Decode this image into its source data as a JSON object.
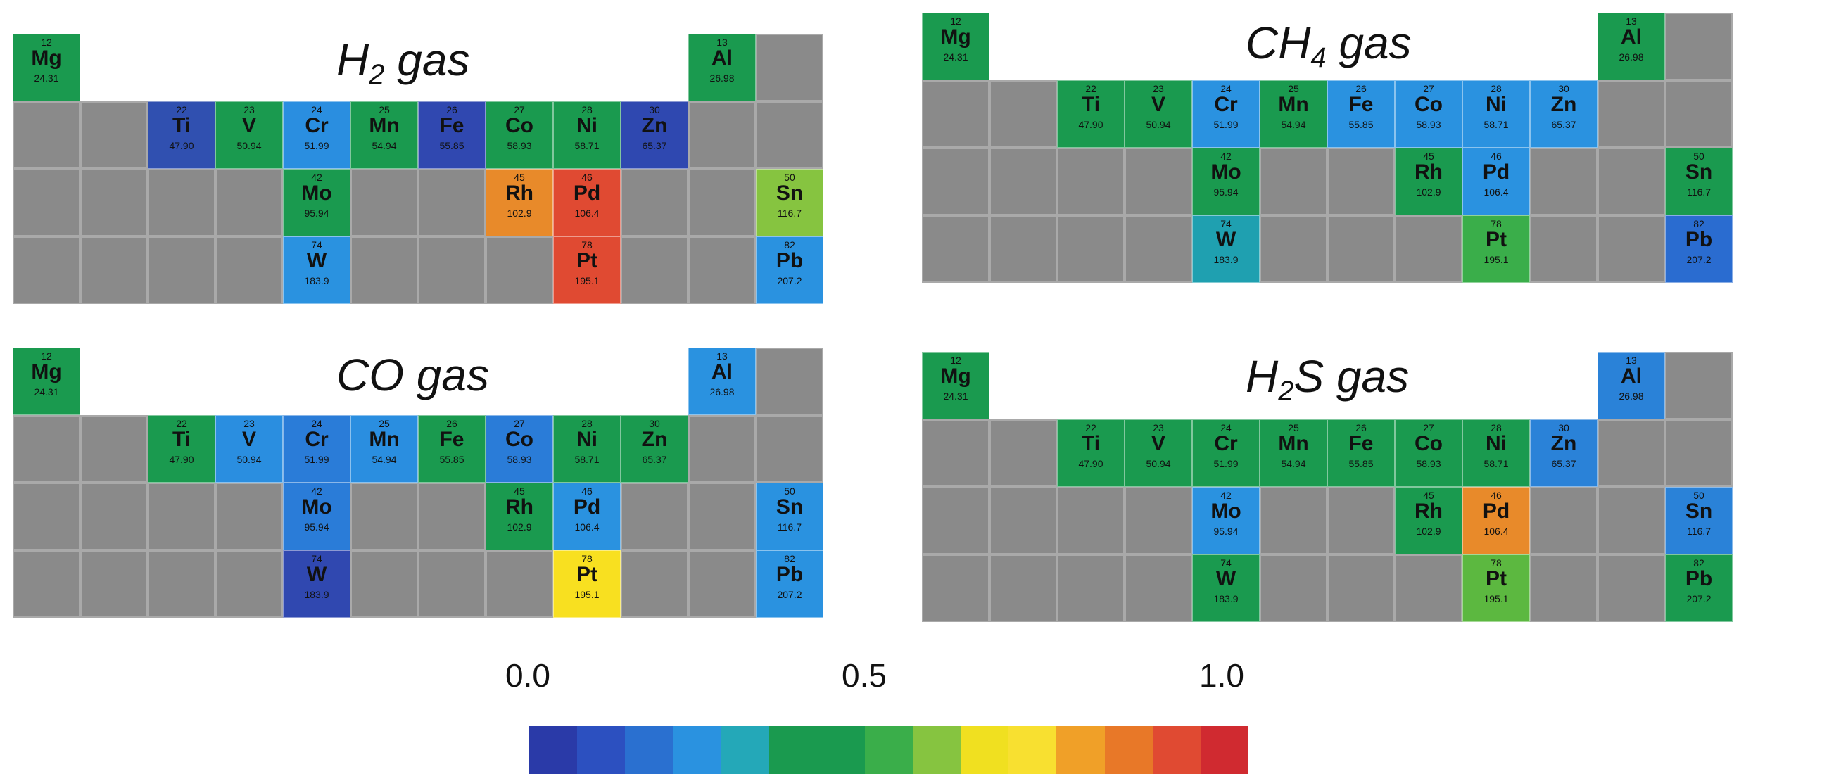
{
  "panels": [
    {
      "title_main": "H",
      "title_sub": "2",
      "title_rest": " gas",
      "elements": {
        "Mg": "#1a9a4f",
        "Al": "#1a9a4f",
        "Ti": "#3050b0",
        "V": "#1a9a4f",
        "Cr": "#2a8ee0",
        "Mn": "#1a9a4f",
        "Fe": "#3048b0",
        "Co": "#1a9a4f",
        "Ni": "#1a9a4f",
        "Zn": "#2f48b0",
        "Mo": "#1a9a4f",
        "Rh": "#e88a2a",
        "Pd": "#e04a32",
        "Sn": "#86c440",
        "W": "#2a92e0",
        "Pt": "#e04a32",
        "Pb": "#2a92e0"
      }
    },
    {
      "title_main": "CH",
      "title_sub": "4",
      "title_rest": " gas",
      "elements": {
        "Mg": "#1a9a4f",
        "Al": "#1a9a4f",
        "Ti": "#1a9a4f",
        "V": "#1a9a4f",
        "Cr": "#2a92e0",
        "Mn": "#1a9a4f",
        "Fe": "#2a92e0",
        "Co": "#2a92e0",
        "Ni": "#2a92e0",
        "Zn": "#2a92e0",
        "Mo": "#1a9a4f",
        "Rh": "#1a9a4f",
        "Pd": "#2a92e0",
        "Sn": "#1a9a4f",
        "W": "#1fa0b0",
        "Pt": "#3aae4a",
        "Pb": "#2a6cd0"
      }
    },
    {
      "title_main": "CO",
      "title_sub": "",
      "title_rest": " gas",
      "elements": {
        "Mg": "#1a9a4f",
        "Al": "#2a92e0",
        "Ti": "#1a9a4f",
        "V": "#2a8ee0",
        "Cr": "#2a7cd8",
        "Mn": "#2a8ee0",
        "Fe": "#1a9a4f",
        "Co": "#2a7cd8",
        "Ni": "#1a9a4f",
        "Zn": "#1a9a4f",
        "Mo": "#2a7cd8",
        "Rh": "#1a9a4f",
        "Pd": "#2a92e0",
        "Sn": "#2a92e0",
        "W": "#3048b0",
        "Pt": "#f8e020",
        "Pb": "#2a92e0"
      }
    },
    {
      "title_main": "H",
      "title_sub": "2",
      "title_rest": "S gas",
      "elements": {
        "Mg": "#1a9a4f",
        "Al": "#2a82d8",
        "Ti": "#1a9a4f",
        "V": "#1a9a4f",
        "Cr": "#1a9a4f",
        "Mn": "#1a9a4f",
        "Fe": "#1a9a4f",
        "Co": "#1a9a4f",
        "Ni": "#1a9a4f",
        "Zn": "#2a82d8",
        "Mo": "#2a92e0",
        "Rh": "#1a9a4f",
        "Pd": "#e88a2a",
        "Sn": "#2a82d8",
        "W": "#1a9a4f",
        "Pt": "#5cb840",
        "Pb": "#1a9a4f"
      }
    }
  ],
  "element_info": {
    "Mg": {
      "num": "12",
      "mass": "24.31"
    },
    "Al": {
      "num": "13",
      "mass": "26.98"
    },
    "Ti": {
      "num": "22",
      "mass": "47.90"
    },
    "V": {
      "num": "23",
      "mass": "50.94"
    },
    "Cr": {
      "num": "24",
      "mass": "51.99"
    },
    "Mn": {
      "num": "25",
      "mass": "54.94"
    },
    "Fe": {
      "num": "26",
      "mass": "55.85"
    },
    "Co": {
      "num": "27",
      "mass": "58.93"
    },
    "Ni": {
      "num": "28",
      "mass": "58.71"
    },
    "Zn": {
      "num": "30",
      "mass": "65.37"
    },
    "Mo": {
      "num": "42",
      "mass": "95.94"
    },
    "Rh": {
      "num": "45",
      "mass": "102.9"
    },
    "Pd": {
      "num": "46",
      "mass": "106.4"
    },
    "Sn": {
      "num": "50",
      "mass": "116.7"
    },
    "W": {
      "num": "74",
      "mass": "183.9"
    },
    "Pt": {
      "num": "78",
      "mass": "195.1"
    },
    "Pb": {
      "num": "82",
      "mass": "207.2"
    }
  },
  "colorbar": {
    "labels": [
      "0.0",
      "0.5",
      "1.0"
    ],
    "stops": [
      "#2a3aa8",
      "#2c50c0",
      "#2a70d0",
      "#2a92e0",
      "#24a8b8",
      "#1a9a4f",
      "#1a9a4f",
      "#3aae4a",
      "#86c440",
      "#f0e020",
      "#f8e030",
      "#f0a028",
      "#e87828",
      "#e04a32",
      "#d02a30"
    ]
  }
}
